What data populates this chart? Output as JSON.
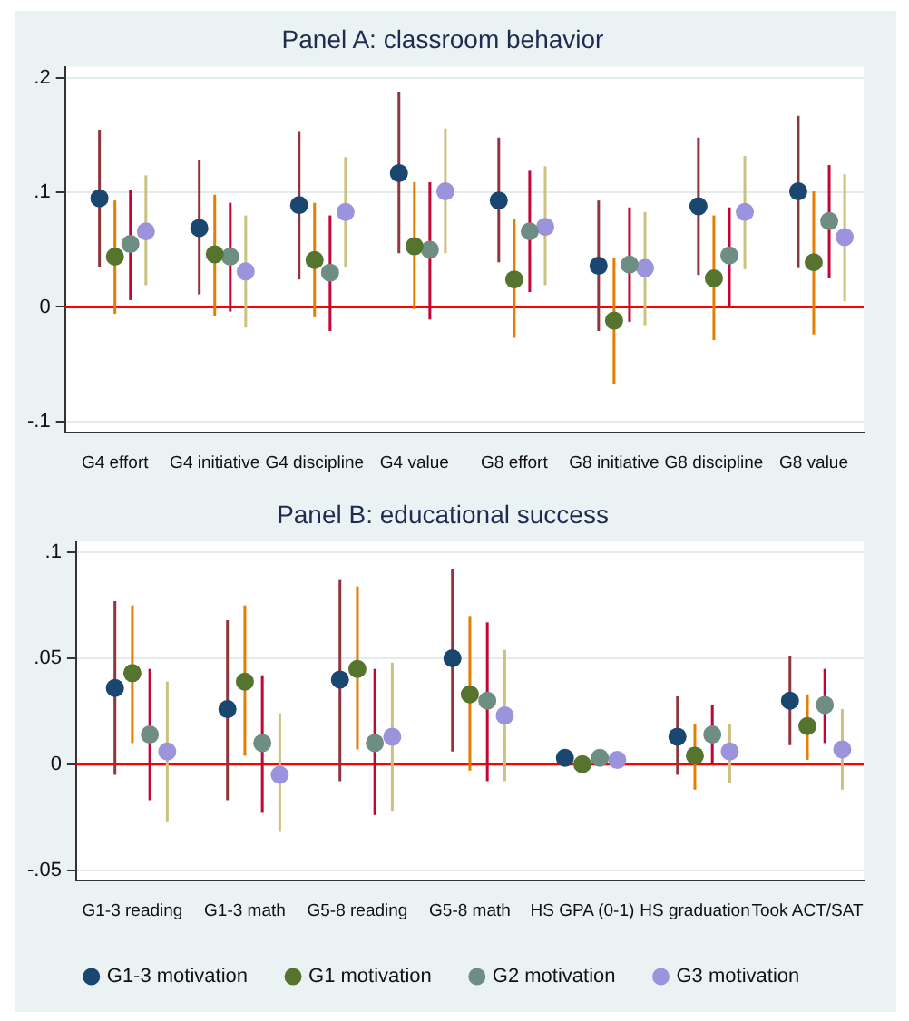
{
  "chart_data": [
    {
      "type": "scatter",
      "title": "Panel A: classroom behavior",
      "categories": [
        "G4 effort",
        "G4 initiative",
        "G4 discipline",
        "G4 value",
        "G8 effort",
        "G8 initiative",
        "G8 discipline",
        "G8 value"
      ],
      "series": [
        {
          "color": "#1a476f",
          "values": [
            0.095,
            0.069,
            0.089,
            0.117,
            0.093,
            0.036,
            0.088,
            0.101
          ],
          "errors": [
            [
              0.035,
              0.155
            ],
            [
              0.011,
              0.128
            ],
            [
              0.024,
              0.153
            ],
            [
              0.047,
              0.188
            ],
            [
              0.039,
              0.148
            ],
            [
              -0.021,
              0.093
            ],
            [
              0.028,
              0.148
            ],
            [
              0.034,
              0.167
            ]
          ]
        },
        {
          "color": "#55752f",
          "values": [
            0.044,
            0.046,
            0.041,
            0.053,
            0.024,
            -0.012,
            0.025,
            0.039
          ],
          "errors": [
            [
              -0.006,
              0.093
            ],
            [
              -0.008,
              0.098
            ],
            [
              -0.009,
              0.091
            ],
            [
              -0.002,
              0.109
            ],
            [
              -0.027,
              0.077
            ],
            [
              -0.067,
              0.043
            ],
            [
              -0.029,
              0.08
            ],
            [
              -0.024,
              0.101
            ]
          ]
        },
        {
          "color": "#6e8e84",
          "values": [
            0.055,
            0.044,
            0.03,
            0.05,
            0.066,
            0.037,
            0.045,
            0.075
          ],
          "errors": [
            [
              0.006,
              0.102
            ],
            [
              -0.004,
              0.091
            ],
            [
              -0.021,
              0.08
            ],
            [
              -0.011,
              0.109
            ],
            [
              0.013,
              0.119
            ],
            [
              -0.013,
              0.087
            ],
            [
              0,
              0.087
            ],
            [
              0.025,
              0.124
            ]
          ]
        },
        {
          "color": "#9b94dc",
          "values": [
            0.066,
            0.031,
            0.083,
            0.101,
            0.07,
            0.034,
            0.083,
            0.061
          ],
          "errors": [
            [
              0.019,
              0.115
            ],
            [
              -0.018,
              0.08
            ],
            [
              0.035,
              0.131
            ],
            [
              0.047,
              0.156
            ],
            [
              0.019,
              0.123
            ],
            [
              -0.016,
              0.083
            ],
            [
              0.033,
              0.132
            ],
            [
              0.005,
              0.116
            ]
          ]
        }
      ],
      "ylim": [
        -0.11,
        0.21
      ],
      "yticks": [
        {
          "value": -0.1,
          "label": "-.1"
        },
        {
          "value": 0,
          "label": "0"
        },
        {
          "value": 0.1,
          "label": ".1"
        },
        {
          "value": 0.2,
          "label": ".2"
        }
      ],
      "grid": "y",
      "marker": "circle",
      "ref_lines": [
        {
          "axis": "y",
          "value": 0,
          "color": "#ff0000"
        }
      ]
    },
    {
      "type": "scatter",
      "title": "Panel B: educational success",
      "categories": [
        "G1-3 reading",
        "G1-3 math",
        "G5-8 reading",
        "G5-8 math",
        "HS GPA (0-1)",
        "HS graduation",
        "Took ACT/SAT"
      ],
      "series": [
        {
          "name": "G1-3 motivation",
          "color": "#1a476f",
          "values": [
            0.036,
            0.026,
            0.04,
            0.05,
            0.003,
            0.013,
            0.03
          ],
          "errors": [
            [
              -0.005,
              0.077
            ],
            [
              -0.017,
              0.068
            ],
            [
              -0.008,
              0.087
            ],
            [
              0.006,
              0.092
            ],
            null,
            [
              -0.005,
              0.032
            ],
            [
              0.009,
              0.051
            ]
          ]
        },
        {
          "name": "G1 motivation",
          "color": "#55752f",
          "values": [
            0.043,
            0.039,
            0.045,
            0.033,
            0,
            0.004,
            0.018
          ],
          "errors": [
            [
              0.01,
              0.075
            ],
            [
              0.004,
              0.075
            ],
            [
              0.007,
              0.084
            ],
            [
              -0.003,
              0.07
            ],
            null,
            [
              -0.012,
              0.019
            ],
            [
              0.002,
              0.033
            ]
          ]
        },
        {
          "name": "G2 motivation",
          "color": "#6e8e84",
          "values": [
            0.014,
            0.01,
            0.01,
            0.03,
            0.003,
            0.014,
            0.028
          ],
          "errors": [
            [
              -0.017,
              0.045
            ],
            [
              -0.023,
              0.042
            ],
            [
              -0.024,
              0.045
            ],
            [
              -0.008,
              0.067
            ],
            null,
            [
              0,
              0.028
            ],
            [
              0.01,
              0.045
            ]
          ]
        },
        {
          "name": "G3 motivation",
          "color": "#9b94dc",
          "values": [
            0.006,
            -0.005,
            0.013,
            0.023,
            0.002,
            0.006,
            0.007
          ],
          "errors": [
            [
              -0.027,
              0.039
            ],
            [
              -0.032,
              0.024
            ],
            [
              -0.022,
              0.048
            ],
            [
              -0.008,
              0.054
            ],
            null,
            [
              -0.009,
              0.019
            ],
            [
              -0.012,
              0.026
            ]
          ]
        }
      ],
      "ylim": [
        -0.055,
        0.105
      ],
      "yticks": [
        {
          "value": -0.05,
          "label": "-.05"
        },
        {
          "value": 0,
          "label": "0"
        },
        {
          "value": 0.05,
          "label": ".05"
        },
        {
          "value": 0.1,
          "label": ".1"
        }
      ],
      "grid": "y",
      "marker": "circle",
      "legend": "bottom",
      "ref_lines": [
        {
          "axis": "y",
          "value": 0,
          "color": "#ff0000"
        }
      ]
    }
  ]
}
